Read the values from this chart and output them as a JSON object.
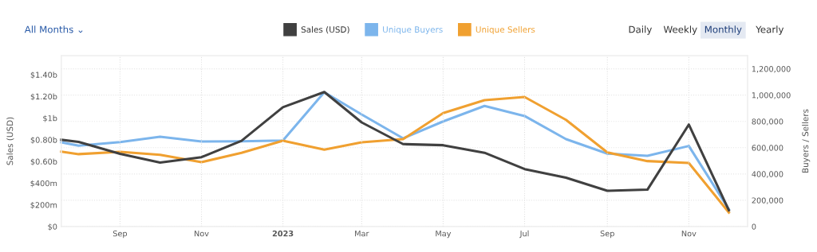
{
  "chart_data": {
    "type": "line",
    "x": [
      "2022-07-19",
      "2022-08-01",
      "2022-09-01",
      "2022-10-01",
      "2022-11-01",
      "2022-12-01",
      "2023-01-01",
      "2023-02-01",
      "2023-03-01",
      "2023-04-01",
      "2023-05-01",
      "2023-06-01",
      "2023-07-01",
      "2023-08-01",
      "2023-09-01",
      "2023-10-01",
      "2023-11-01",
      "2023-12-01"
    ],
    "series": [
      {
        "name": "Sales (USD)",
        "color": "#404040",
        "values": [
          800000000,
          780000000,
          670000000,
          590000000,
          640000000,
          790000000,
          1100000000,
          1240000000,
          960000000,
          760000000,
          750000000,
          680000000,
          530000000,
          450000000,
          330000000,
          340000000,
          940000000,
          150000000
        ]
      },
      {
        "name": "Unique Buyers",
        "color": "#7cb5ec",
        "axis": "y2",
        "values": [
          641000,
          615000,
          643000,
          684000,
          647000,
          649000,
          655000,
          1022000,
          853000,
          671000,
          800000,
          918000,
          841000,
          665000,
          555000,
          538000,
          613000,
          131000
        ]
      },
      {
        "name": "Unique Sellers",
        "color": "#f0a030",
        "axis": "y2",
        "values": [
          570000,
          551000,
          569000,
          546000,
          490000,
          561000,
          653000,
          585000,
          641000,
          665000,
          863000,
          962000,
          986000,
          812000,
          564000,
          498000,
          484000,
          107000
        ]
      }
    ],
    "ylabel": "Sales (USD)",
    "y2label": "Buyers / Sellers",
    "xlim": [
      "2022-07-19",
      "2023-12-15"
    ],
    "xticks": [
      {
        "value": "2022-09-01",
        "label": "Sep"
      },
      {
        "value": "2022-11-01",
        "label": "Nov"
      },
      {
        "value": "2023-01-01",
        "label": "2023"
      },
      {
        "value": "2023-03-01",
        "label": "Mar"
      },
      {
        "value": "2023-05-01",
        "label": "May"
      },
      {
        "value": "2023-07-01",
        "label": "Jul"
      },
      {
        "value": "2023-09-01",
        "label": "Sep"
      },
      {
        "value": "2023-11-01",
        "label": "Nov"
      }
    ],
    "ylim": [
      0,
      1575000000
    ],
    "yticks": [
      {
        "value": 0,
        "label": "$0"
      },
      {
        "value": 200000000,
        "label": "$200m"
      },
      {
        "value": 400000000,
        "label": "$400m"
      },
      {
        "value": 600000000,
        "label": "$0.60b"
      },
      {
        "value": 800000000,
        "label": "$0.80b"
      },
      {
        "value": 1000000000,
        "label": "$1b"
      },
      {
        "value": 1200000000,
        "label": "$1.20b"
      },
      {
        "value": 1400000000,
        "label": "$1.40b"
      }
    ],
    "y2lim": [
      0,
      1300000
    ],
    "y2ticks": [
      {
        "value": 0,
        "label": "0"
      },
      {
        "value": 200000,
        "label": "200,000"
      },
      {
        "value": 400000,
        "label": "400,000"
      },
      {
        "value": 600000,
        "label": "600,000"
      },
      {
        "value": 800000,
        "label": "800,000"
      },
      {
        "value": 1000000,
        "label": "1,000,000"
      },
      {
        "value": 1200000,
        "label": "1,200,000"
      }
    ],
    "grid": true,
    "legend": "top",
    "marker": "none",
    "line_style": "solid",
    "annotations": [
      "All Months ⌄",
      "Daily",
      "Weekly",
      "Monthly",
      "Yearly"
    ]
  }
}
